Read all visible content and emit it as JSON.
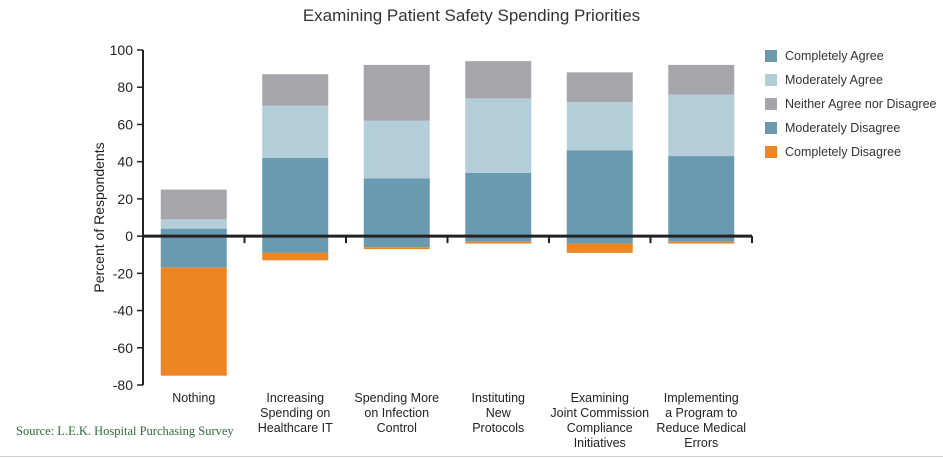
{
  "chart_data": {
    "type": "bar",
    "stacked": true,
    "title": "Examining Patient Safety Spending Priorities",
    "ylabel": "Percent of Respondents",
    "xlabel": "",
    "ylim": [
      -80,
      100
    ],
    "yticks": [
      100,
      80,
      60,
      40,
      20,
      0,
      -20,
      -40,
      -60,
      -80
    ],
    "categories": [
      "Nothing",
      "Increasing Spending on Healthcare IT",
      "Spending More on Infection Control",
      "Instituting New Protocols",
      "Examining Joint Commission Compliance Initiatives",
      "Implementing a Program to Reduce Medical Errors"
    ],
    "category_lines": [
      [
        "Nothing"
      ],
      [
        "Increasing",
        "Spending on",
        "Healthcare IT"
      ],
      [
        "Spending More",
        "on Infection",
        "Control"
      ],
      [
        "Instituting",
        "New",
        "Protocols"
      ],
      [
        "Examining",
        "Joint Commission",
        "Compliance",
        "Initiatives"
      ],
      [
        "Implementing",
        "a Program to",
        "Reduce Medical",
        "Errors"
      ]
    ],
    "series": [
      {
        "name": "Completely Agree",
        "color": "#6a9ab0",
        "values": [
          4,
          42,
          31,
          34,
          46,
          43
        ]
      },
      {
        "name": "Moderately Agree",
        "color": "#b3cdd9",
        "values": [
          5,
          28,
          31,
          40,
          26,
          33
        ]
      },
      {
        "name": "Neither Agree nor Disagree",
        "color": "#a6a6aa",
        "values": [
          16,
          17,
          30,
          20,
          16,
          16
        ]
      },
      {
        "name": "Moderately Disagree",
        "color": "#6a9ab0",
        "values": [
          -17,
          -9,
          -6,
          -3,
          -4,
          -3
        ]
      },
      {
        "name": "Completely Disagree",
        "color": "#ee8523",
        "values": [
          -58,
          -4,
          -1,
          -1,
          -5,
          -1
        ]
      }
    ],
    "legend_position": "right",
    "grid": false
  },
  "source": "Source: L.E.K. Hospital Purchasing Survey"
}
